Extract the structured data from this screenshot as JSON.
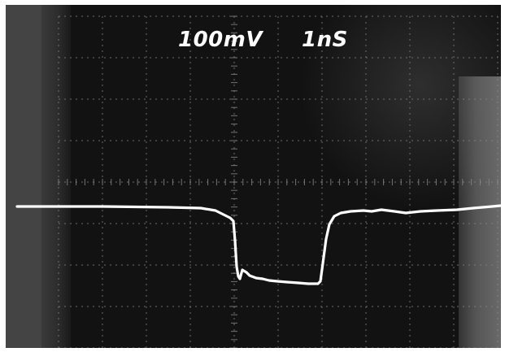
{
  "oscilloscope": {
    "volts_per_div": "100mV",
    "time_per_div": "1nS"
  },
  "colors": {
    "screen": "#121212",
    "trace": "#ffffff",
    "graticule": "#8a8a8a"
  }
}
